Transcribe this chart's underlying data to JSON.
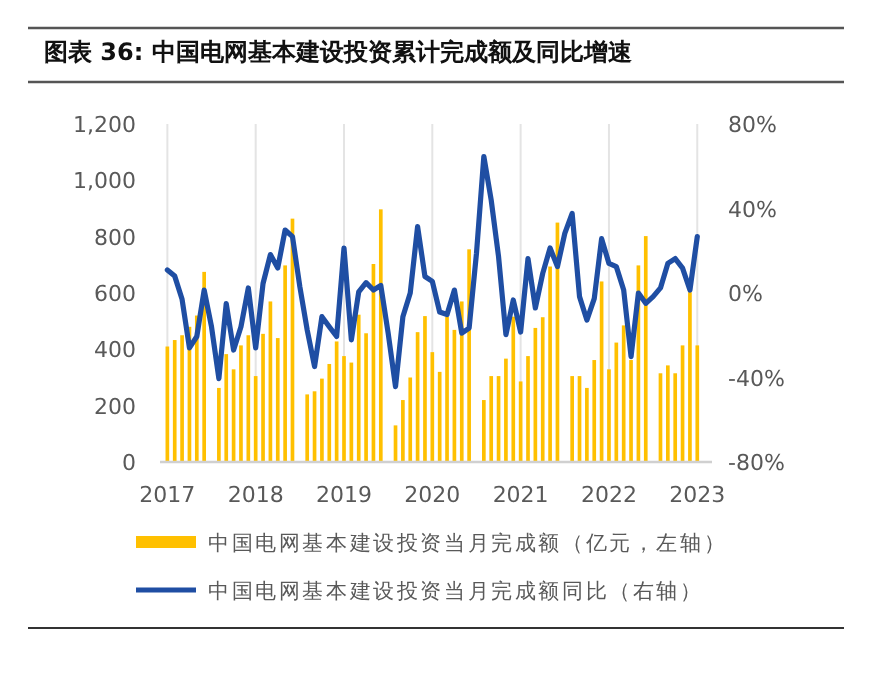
{
  "chart_data": {
    "type": "bar",
    "title": "图表 36: 中国电网基本建设投资累计完成额及同比增速",
    "x": [
      "2017-01",
      "2017-02",
      "2017-03",
      "2017-04",
      "2017-05",
      "2017-06",
      "2017-07",
      "2017-08",
      "2017-09",
      "2017-10",
      "2017-11",
      "2017-12",
      "2018-01",
      "2018-02",
      "2018-03",
      "2018-04",
      "2018-05",
      "2018-06",
      "2018-07",
      "2018-08",
      "2018-09",
      "2018-10",
      "2018-11",
      "2018-12",
      "2019-01",
      "2019-02",
      "2019-03",
      "2019-04",
      "2019-05",
      "2019-06",
      "2019-07",
      "2019-08",
      "2019-09",
      "2019-10",
      "2019-11",
      "2019-12",
      "2020-01",
      "2020-02",
      "2020-03",
      "2020-04",
      "2020-05",
      "2020-06",
      "2020-07",
      "2020-08",
      "2020-09",
      "2020-10",
      "2020-11",
      "2020-12",
      "2021-01",
      "2021-02",
      "2021-03",
      "2021-04",
      "2021-05",
      "2021-06",
      "2021-07",
      "2021-08",
      "2021-09",
      "2021-10",
      "2021-11",
      "2021-12",
      "2022-01",
      "2022-02",
      "2022-03",
      "2022-04",
      "2022-05",
      "2022-06",
      "2022-07",
      "2022-08",
      "2022-09",
      "2022-10",
      "2022-11",
      "2022-12",
      "2023-01"
    ],
    "series": [
      {
        "name": "中国电网基本建设投资当月完成额（亿元，左轴）",
        "color": "#ffc000",
        "values": [
          410,
          433,
          450,
          480,
          520,
          675,
          null,
          263,
          383,
          329,
          414,
          450,
          305,
          455,
          570,
          440,
          698,
          864,
          null,
          240,
          251,
          296,
          348,
          428,
          376,
          353,
          523,
          457,
          703,
          897,
          null,
          130,
          220,
          300,
          461,
          518,
          390,
          320,
          516,
          469,
          570,
          755,
          null,
          220,
          305,
          305,
          367,
          516,
          286,
          376,
          476,
          514,
          694,
          850,
          null,
          305,
          305,
          263,
          362,
          641,
          329,
          424,
          485,
          362,
          698,
          802,
          null,
          315,
          343,
          315,
          414,
          603,
          414
        ]
      },
      {
        "name": "中国电网基本建设投资当月完成额同比（右轴）",
        "type": "line",
        "axis": "y2",
        "color": "#1f4ea3",
        "values": [
          10.9,
          8,
          -3,
          -26,
          -20.6,
          1.4,
          -16,
          -40.5,
          -5,
          -27,
          -16,
          2.4,
          -26,
          4.5,
          18.2,
          11.8,
          29.8,
          26.7,
          3,
          -17.5,
          -34.8,
          -11.2,
          -16,
          -20.6,
          21.3,
          -22.2,
          0.5,
          4.9,
          1.4,
          3.6,
          -19,
          -44.3,
          -11.2,
          0,
          31.4,
          7.8,
          5.5,
          -9,
          -10.2,
          1.4,
          -19,
          -16.6,
          18.8,
          64.6,
          44,
          17.2,
          -19.7,
          -3.3,
          -18.5,
          16.3,
          -7.1,
          9.3,
          21.3,
          12.5,
          28.2,
          37.7,
          -1.7,
          -12.8,
          -2.7,
          25.7,
          14,
          12.5,
          1.4,
          -30.1,
          0,
          -4.9,
          -1.7,
          2.4,
          14,
          16.3,
          11.8,
          1.4,
          26.7
        ]
      }
    ],
    "xlim": [
      "2016-12",
      "2023-03"
    ],
    "xticks": [
      {
        "value": "2017-01",
        "label": "2017"
      },
      {
        "value": "2018-01",
        "label": "2018"
      },
      {
        "value": "2019-01",
        "label": "2019"
      },
      {
        "value": "2020-01",
        "label": "2020"
      },
      {
        "value": "2021-01",
        "label": "2021"
      },
      {
        "value": "2022-01",
        "label": "2022"
      },
      {
        "value": "2023-01",
        "label": "2023"
      }
    ],
    "ylim": [
      0,
      1200
    ],
    "yticks": [
      0,
      200,
      400,
      600,
      800,
      {
        "value": 1000,
        "label": "1,000"
      },
      {
        "value": 1200,
        "label": "1,200"
      }
    ],
    "y2lim": [
      -80,
      80
    ],
    "y2ticks": [
      {
        "value": -80,
        "label": "-80%"
      },
      {
        "value": -40,
        "label": "-40%"
      },
      {
        "value": 0,
        "label": "0%"
      },
      {
        "value": 40,
        "label": "40%"
      },
      {
        "value": 80,
        "label": "80%"
      }
    ],
    "grid": "x",
    "legend": "bottom"
  }
}
